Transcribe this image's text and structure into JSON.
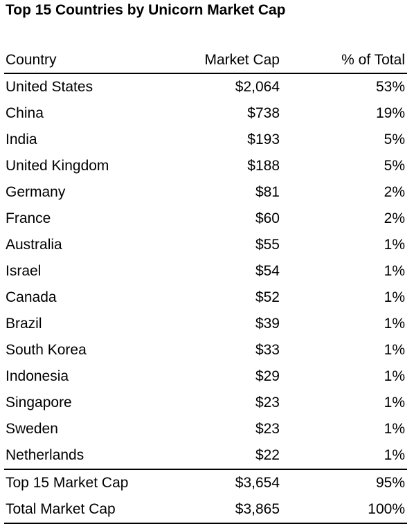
{
  "title": "Top 15 Countries by Unicorn Market Cap",
  "columns": {
    "country": "Country",
    "market_cap": "Market Cap",
    "pct_total": "% of Total"
  },
  "rows": [
    {
      "country": "United States",
      "market_cap": "$2,064",
      "pct": "53%"
    },
    {
      "country": "China",
      "market_cap": "$738",
      "pct": "19%"
    },
    {
      "country": "India",
      "market_cap": "$193",
      "pct": "5%"
    },
    {
      "country": "United Kingdom",
      "market_cap": "$188",
      "pct": "5%"
    },
    {
      "country": "Germany",
      "market_cap": "$81",
      "pct": "2%"
    },
    {
      "country": "France",
      "market_cap": "$60",
      "pct": "2%"
    },
    {
      "country": "Australia",
      "market_cap": "$55",
      "pct": "1%"
    },
    {
      "country": "Israel",
      "market_cap": "$54",
      "pct": "1%"
    },
    {
      "country": "Canada",
      "market_cap": "$52",
      "pct": "1%"
    },
    {
      "country": "Brazil",
      "market_cap": "$39",
      "pct": "1%"
    },
    {
      "country": "South Korea",
      "market_cap": "$33",
      "pct": "1%"
    },
    {
      "country": "Indonesia",
      "market_cap": "$29",
      "pct": "1%"
    },
    {
      "country": "Singapore",
      "market_cap": "$23",
      "pct": "1%"
    },
    {
      "country": "Sweden",
      "market_cap": "$23",
      "pct": "1%"
    },
    {
      "country": "Netherlands",
      "market_cap": "$22",
      "pct": "1%"
    }
  ],
  "summary": [
    {
      "label": "Top 15 Market Cap",
      "market_cap": "$3,654",
      "pct": "95%"
    },
    {
      "label": "Total Market Cap",
      "market_cap": "$3,865",
      "pct": "100%"
    }
  ]
}
